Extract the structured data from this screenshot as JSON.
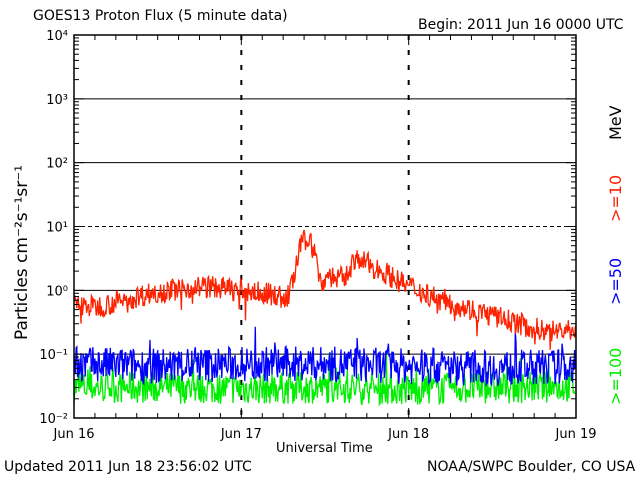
{
  "header": {
    "title": "GOES13 Proton Flux (5 minute data)",
    "begin": "Begin: 2011 Jun 16 0000 UTC"
  },
  "footer": {
    "updated": "Updated 2011 Jun 18 23:56:02 UTC",
    "credit": "NOAA/SWPC Boulder, CO USA"
  },
  "chart_data": {
    "type": "line",
    "title": "GOES13 Proton Flux (5 minute data)",
    "xlabel": "Universal Time",
    "ylabel": "Particles cm⁻²s⁻¹sr⁻¹",
    "y_scale": "log",
    "ylim": [
      0.01,
      10000
    ],
    "xlim": [
      0,
      72
    ],
    "x_unit": "hours since 2011 Jun 16 0000 UTC",
    "x_ticks": [
      {
        "t": 0,
        "label": "Jun 16"
      },
      {
        "t": 24,
        "label": "Jun 17"
      },
      {
        "t": 48,
        "label": "Jun 18"
      },
      {
        "t": 72,
        "label": "Jun 19"
      }
    ],
    "y_ticks": [
      "10⁻²",
      "10⁻¹",
      "10⁰",
      "10¹",
      "10²",
      "10³",
      "10⁴"
    ],
    "thresholds": [
      {
        "value": 10,
        "style": "dashed"
      },
      {
        "value": 0.1,
        "style": "solid"
      },
      {
        "value": 1,
        "style": "solid"
      },
      {
        "value": 100,
        "style": "solid"
      },
      {
        "value": 1000,
        "style": "solid"
      }
    ],
    "energy_unit": "MeV",
    "series": [
      {
        "name": ">=10",
        "color": "#ff2200",
        "points": [
          [
            0,
            0.6
          ],
          [
            3,
            0.55
          ],
          [
            6,
            0.65
          ],
          [
            9,
            0.8
          ],
          [
            12,
            0.95
          ],
          [
            15,
            1.05
          ],
          [
            18,
            1.15
          ],
          [
            21,
            1.1
          ],
          [
            24,
            1.0
          ],
          [
            27,
            0.9
          ],
          [
            29,
            0.85
          ],
          [
            30.5,
            0.7
          ],
          [
            31.5,
            1.5
          ],
          [
            32.5,
            5.0
          ],
          [
            33.5,
            7.0
          ],
          [
            34.5,
            4.0
          ],
          [
            35.5,
            1.2
          ],
          [
            36.5,
            1.8
          ],
          [
            37.5,
            1.5
          ],
          [
            39,
            1.6
          ],
          [
            40,
            2.8
          ],
          [
            41,
            3.0
          ],
          [
            43,
            2.3
          ],
          [
            45,
            1.8
          ],
          [
            47,
            1.3
          ],
          [
            49,
            1.05
          ],
          [
            51,
            0.85
          ],
          [
            54,
            0.65
          ],
          [
            57,
            0.5
          ],
          [
            60,
            0.4
          ],
          [
            63,
            0.32
          ],
          [
            66,
            0.25
          ],
          [
            69,
            0.23
          ],
          [
            72,
            0.25
          ]
        ]
      },
      {
        "name": ">=50",
        "color": "#0000ff",
        "points": [
          [
            0,
            0.07
          ],
          [
            12,
            0.065
          ],
          [
            24,
            0.07
          ],
          [
            36,
            0.07
          ],
          [
            48,
            0.065
          ],
          [
            60,
            0.06
          ],
          [
            72,
            0.065
          ]
        ]
      },
      {
        "name": ">=100",
        "color": "#00ee00",
        "points": [
          [
            0,
            0.03
          ],
          [
            12,
            0.03
          ],
          [
            24,
            0.029
          ],
          [
            36,
            0.03
          ],
          [
            48,
            0.028
          ],
          [
            60,
            0.03
          ],
          [
            72,
            0.031
          ]
        ]
      }
    ]
  }
}
